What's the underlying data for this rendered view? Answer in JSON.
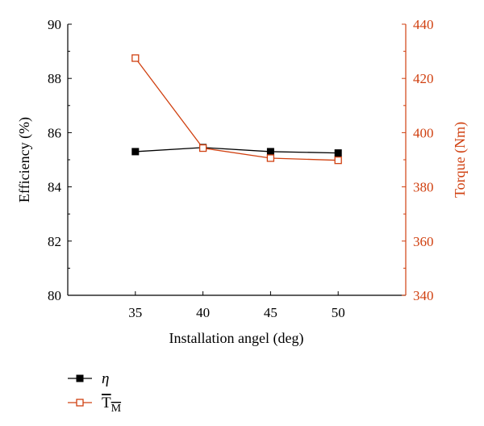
{
  "chart_data": {
    "type": "line",
    "x": [
      35,
      40,
      45,
      50
    ],
    "xlabel": "Installation angel (deg)",
    "xlim": [
      30,
      55
    ],
    "xticks": [
      "35",
      "40",
      "45",
      "50"
    ],
    "y_left": {
      "label": "Efficiency (%)",
      "lim": [
        80,
        90
      ],
      "ticks": [
        "80",
        "82",
        "84",
        "86",
        "88",
        "90"
      ]
    },
    "y_right": {
      "label": "Torque (Nm)",
      "lim": [
        340,
        440
      ],
      "ticks": [
        "340",
        "360",
        "380",
        "400",
        "420",
        "440"
      ],
      "color": "#d04010"
    },
    "series": [
      {
        "name": "η",
        "axis": "left",
        "color": "#000000",
        "marker": "filled-square",
        "values": [
          85.3,
          85.45,
          85.3,
          85.25
        ]
      },
      {
        "name": "T",
        "name_subscript": "M",
        "axis": "right",
        "color": "#d04010",
        "marker": "open-square",
        "values": [
          427.5,
          394.3,
          390.6,
          389.8
        ]
      }
    ],
    "legend": "bottom-left",
    "grid": false
  }
}
